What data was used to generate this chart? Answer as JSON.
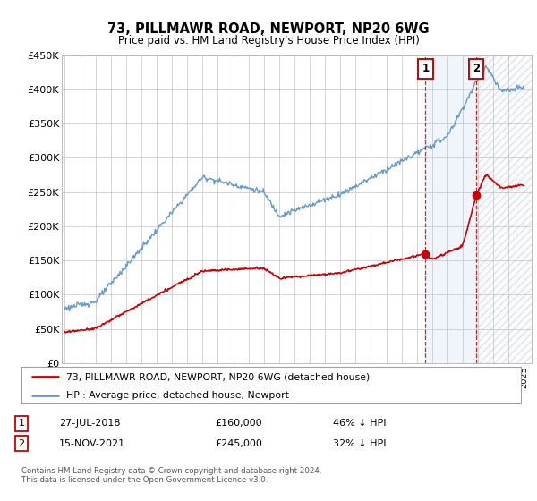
{
  "title": "73, PILLMAWR ROAD, NEWPORT, NP20 6WG",
  "subtitle": "Price paid vs. HM Land Registry's House Price Index (HPI)",
  "legend_line1": "73, PILLMAWR ROAD, NEWPORT, NP20 6WG (detached house)",
  "legend_line2": "HPI: Average price, detached house, Newport",
  "sale1_date": "27-JUL-2018",
  "sale1_price": 160000,
  "sale1_pct": "46% ↓ HPI",
  "sale2_date": "15-NOV-2021",
  "sale2_price": 245000,
  "sale2_pct": "32% ↓ HPI",
  "footnote": "Contains HM Land Registry data © Crown copyright and database right 2024.\nThis data is licensed under the Open Government Licence v3.0.",
  "ylim": [
    0,
    450000
  ],
  "yticks": [
    0,
    50000,
    100000,
    150000,
    200000,
    250000,
    300000,
    350000,
    400000,
    450000
  ],
  "ytick_labels": [
    "£0",
    "£50K",
    "£100K",
    "£150K",
    "£200K",
    "£250K",
    "£300K",
    "£350K",
    "£400K",
    "£450K"
  ],
  "hpi_color": "#6699cc",
  "price_color": "#cc0000",
  "bg_color": "#ffffff",
  "grid_color": "#cccccc",
  "sale1_year": 2018.57,
  "sale2_year": 2021.88,
  "shade_color": "#dce8f5",
  "xlim_left": 1994.8,
  "xlim_right": 2025.5
}
